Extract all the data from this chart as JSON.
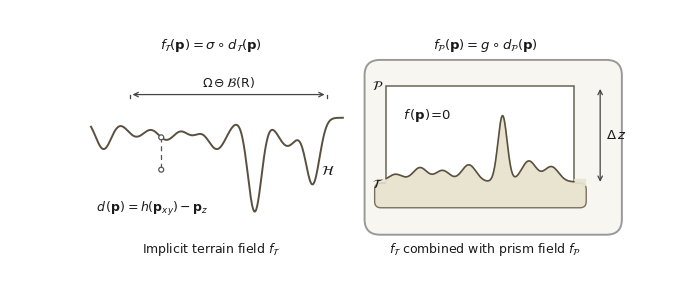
{
  "fig_width": 6.97,
  "fig_height": 2.94,
  "dpi": 100,
  "bg_color": "#ffffff",
  "terrain_color": "#5a5040",
  "terrain_fill": "#ddd8c0",
  "prism_fill": "#e8e4d0",
  "prism_border": "#7a7060",
  "box_outer_color": "#999999",
  "box_inner_color": "#666655",
  "arrow_color": "#444444",
  "text_color": "#1a1a1a",
  "title_left": "$f_{\\mathcal{T}}(\\mathbf{p}) = \\sigma \\circ d_{\\mathcal{T}}(\\mathbf{p})$",
  "title_right": "$f_{\\mathcal{P}}(\\mathbf{p}) = g \\circ d_{\\mathcal{P}}(\\mathbf{p})$",
  "label_d": "$d\\,(\\mathbf{p}) = h(\\mathbf{p}_{xy}) - \\mathbf{p}_z$",
  "label_H": "$\\mathcal{H}$",
  "label_omega": "$\\Omega\\ominus\\mathcal{B}(\\mathrm{R})$",
  "label_implicit": "Implicit terrain field $f_{\\mathcal{T}}$",
  "label_combined": "$f_{\\mathcal{T}}$ combined with prism field $f_{\\mathcal{P}}$",
  "label_f0": "$f\\,(\\mathbf{p})\\!=\\!0$",
  "label_dz": "$\\Delta\\, z$"
}
